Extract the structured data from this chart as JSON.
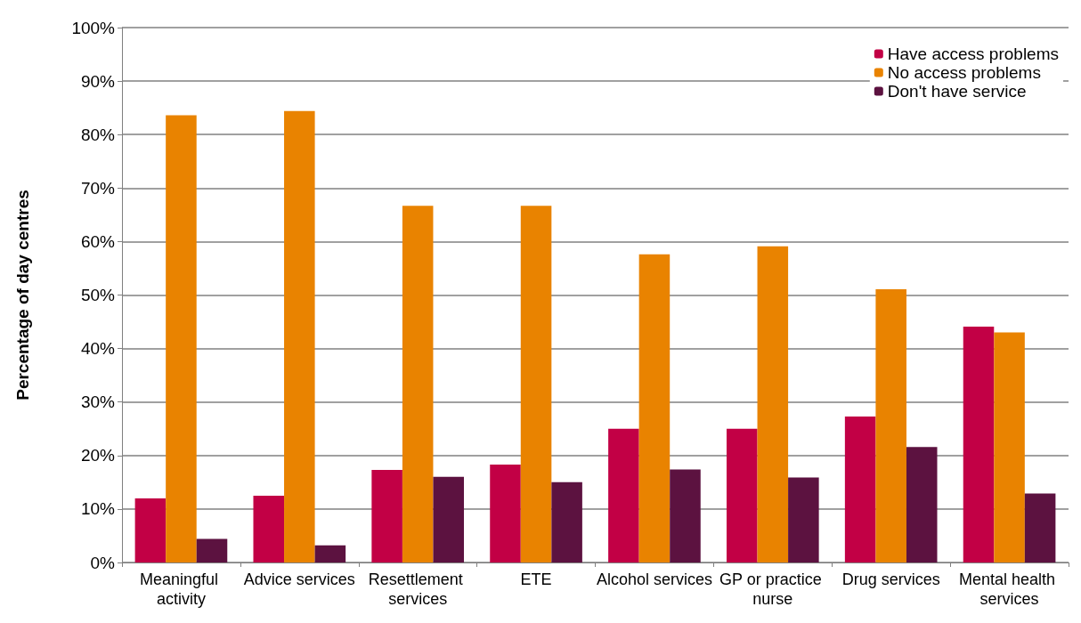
{
  "chart_data": {
    "type": "bar",
    "ylabel": "Percentage of day centres",
    "categories": [
      "Meaningful activity",
      "Advice services",
      "Resettlement services",
      "ETE",
      "Alcohol services",
      "GP or practice nurse",
      "Drug services",
      "Mental health services"
    ],
    "series": [
      {
        "name": "Have access problems",
        "color": "#c20045",
        "values": [
          12,
          12.5,
          17.3,
          18.3,
          25,
          25,
          27.3,
          44.1
        ]
      },
      {
        "name": "No access problems",
        "color": "#e98300",
        "values": [
          83.6,
          84.4,
          66.7,
          66.7,
          57.6,
          59.1,
          51.1,
          43
        ]
      },
      {
        "name": "Don't have service",
        "color": "#5c1240",
        "values": [
          4.4,
          3.2,
          16,
          15,
          17.4,
          15.9,
          21.6,
          12.9
        ]
      }
    ],
    "ylim": [
      0,
      100
    ],
    "yticks": [
      {
        "value": 0,
        "label": "0%"
      },
      {
        "value": 10,
        "label": "10%"
      },
      {
        "value": 20,
        "label": "20%"
      },
      {
        "value": 30,
        "label": "30%"
      },
      {
        "value": 40,
        "label": "40%"
      },
      {
        "value": 50,
        "label": "50%"
      },
      {
        "value": 60,
        "label": "60%"
      },
      {
        "value": 70,
        "label": "70%"
      },
      {
        "value": 80,
        "label": "80%"
      },
      {
        "value": 90,
        "label": "90%"
      },
      {
        "value": 100,
        "label": "100%"
      }
    ],
    "grid": "y",
    "legend": "top right"
  }
}
